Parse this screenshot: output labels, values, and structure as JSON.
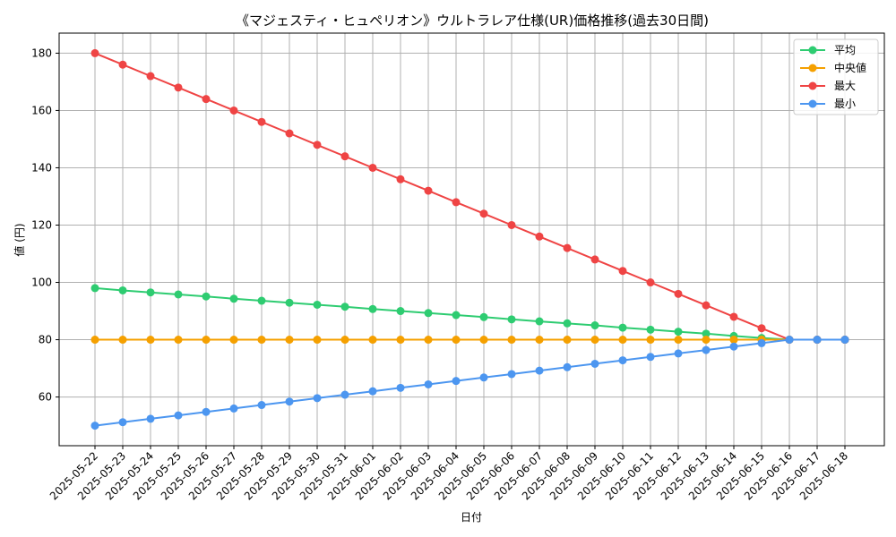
{
  "chart_data": {
    "type": "line",
    "title": "《マジェスティ・ヒュペリオン》ウルトラレア仕様(UR)価格推移(過去30日間)",
    "xlabel": "日付",
    "ylabel": "値 (円)",
    "ylim": [
      43,
      187
    ],
    "yticks": [
      60,
      80,
      100,
      120,
      140,
      160,
      180
    ],
    "grid": true,
    "legend_position": "top-right",
    "categories": [
      "2025-05-22",
      "2025-05-23",
      "2025-05-24",
      "2025-05-25",
      "2025-05-26",
      "2025-05-27",
      "2025-05-28",
      "2025-05-29",
      "2025-05-30",
      "2025-05-31",
      "2025-06-01",
      "2025-06-02",
      "2025-06-03",
      "2025-06-04",
      "2025-06-05",
      "2025-06-06",
      "2025-06-07",
      "2025-06-08",
      "2025-06-09",
      "2025-06-10",
      "2025-06-11",
      "2025-06-12",
      "2025-06-13",
      "2025-06-14",
      "2025-06-15",
      "2025-06-16",
      "2025-06-17",
      "2025-06-18"
    ],
    "series": [
      {
        "name": "平均",
        "color": "#2ecc71",
        "values": [
          98.0,
          97.2,
          96.5,
          95.8,
          95.1,
          94.3,
          93.6,
          92.9,
          92.2,
          91.5,
          90.7,
          90.0,
          89.3,
          88.6,
          87.9,
          87.1,
          86.4,
          85.7,
          85.0,
          84.2,
          83.5,
          82.8,
          82.1,
          81.3,
          80.6,
          80.0,
          80.0,
          80.0
        ]
      },
      {
        "name": "中央値",
        "color": "#f5a000",
        "values": [
          80,
          80,
          80,
          80,
          80,
          80,
          80,
          80,
          80,
          80,
          80,
          80,
          80,
          80,
          80,
          80,
          80,
          80,
          80,
          80,
          80,
          80,
          80,
          80,
          80,
          80,
          80,
          80
        ]
      },
      {
        "name": "最大",
        "color": "#ef4444",
        "values": [
          180,
          176,
          172,
          168,
          164,
          160,
          156,
          152,
          148,
          144,
          140,
          136,
          132,
          128,
          124,
          120,
          116,
          112,
          108,
          104,
          100,
          96,
          92,
          88,
          84,
          80,
          80,
          80
        ]
      },
      {
        "name": "最小",
        "color": "#4c96f0",
        "values": [
          50.0,
          51.2,
          52.4,
          53.6,
          54.8,
          56.0,
          57.2,
          58.4,
          59.6,
          60.8,
          62.0,
          63.2,
          64.4,
          65.6,
          66.8,
          68.0,
          69.2,
          70.4,
          71.6,
          72.8,
          74.0,
          75.2,
          76.4,
          77.6,
          78.8,
          80.0,
          80.0,
          80.0
        ]
      }
    ]
  }
}
